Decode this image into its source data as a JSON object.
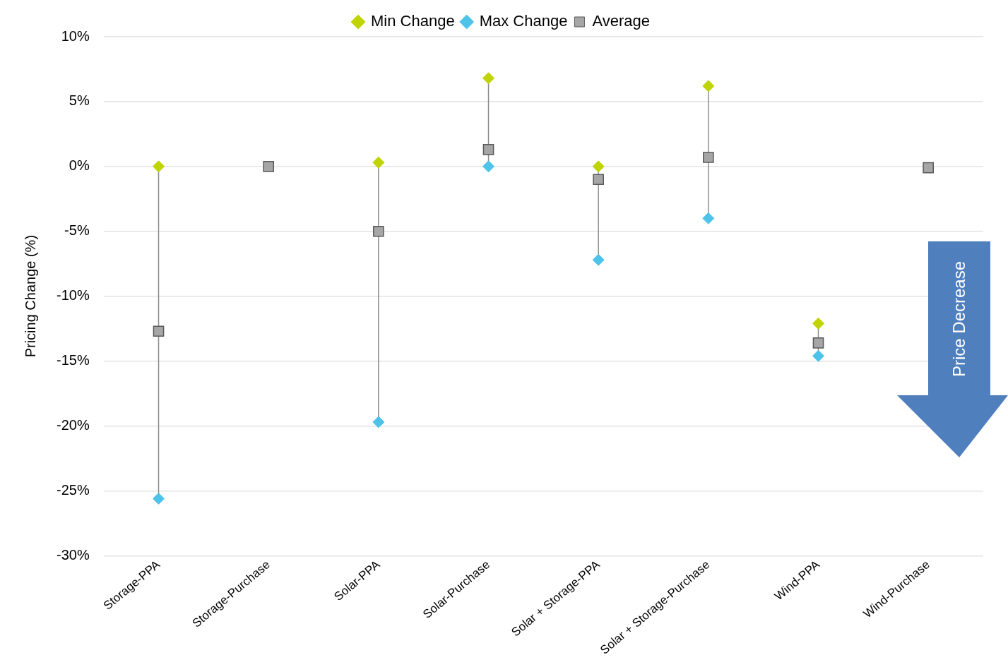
{
  "chart_data": {
    "type": "scatter",
    "ylabel": "Pricing Change (%)",
    "categories": [
      "Storage-PPA",
      "Storage-Purchase",
      "Solar-PPA",
      "Solar-Purchase",
      "Solar + Storage-PPA",
      "Solar + Storage-Purchase",
      "Wind-PPA",
      "Wind-Purchase"
    ],
    "series": [
      {
        "name": "Min Change",
        "color": "#bfd400",
        "marker": "diamond",
        "values": [
          0,
          null,
          0.3,
          6.8,
          0,
          6.2,
          -12.1,
          null
        ]
      },
      {
        "name": "Max Change",
        "color": "#4ec3ea",
        "marker": "diamond",
        "values": [
          -25.6,
          null,
          -19.7,
          0,
          -7.2,
          -4,
          -14.6,
          null
        ]
      },
      {
        "name": "Average",
        "color": "#a6a6a6",
        "marker": "square",
        "values": [
          -12.7,
          0,
          -5,
          1.3,
          -1,
          0.7,
          -13.6,
          -0.1
        ]
      }
    ],
    "ylim": [
      -30,
      10
    ],
    "yticks": [
      {
        "value": -30,
        "label": "-30%"
      },
      {
        "value": -25,
        "label": "-25%"
      },
      {
        "value": -20,
        "label": "-20%"
      },
      {
        "value": -15,
        "label": "-15%"
      },
      {
        "value": -10,
        "label": "-10%"
      },
      {
        "value": -5,
        "label": "-5%"
      },
      {
        "value": 0,
        "label": "0%"
      },
      {
        "value": 5,
        "label": "5%"
      },
      {
        "value": 10,
        "label": "10%"
      }
    ],
    "grid": "y",
    "legend": "top",
    "annotations": [
      "Price Decrease"
    ]
  }
}
